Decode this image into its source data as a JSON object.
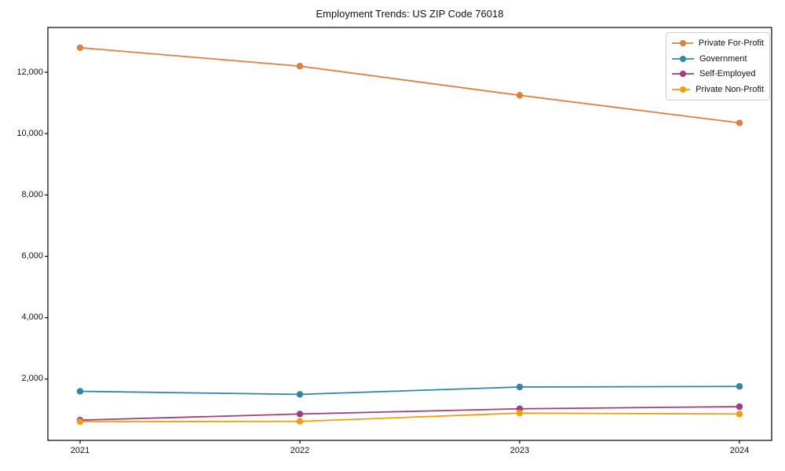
{
  "figure": {
    "title": "Employment Trends: US ZIP Code 76018"
  },
  "chart_data": {
    "type": "line",
    "title": "Employment Trends: US ZIP Code 76018",
    "xlabel": "",
    "ylabel": "",
    "x": [
      2021,
      2022,
      2023,
      2024
    ],
    "x_labels": [
      "2021",
      "2022",
      "2023",
      "2024"
    ],
    "series": [
      {
        "name": "Private For-Profit",
        "color": "#df7f3e",
        "values": [
          12800,
          12200,
          11250,
          10350
        ]
      },
      {
        "name": "Government",
        "color": "#2f87a7",
        "values": [
          1600,
          1500,
          1740,
          1760
        ]
      },
      {
        "name": "Self-Employed",
        "color": "#a53b7c",
        "values": [
          660,
          860,
          1030,
          1100
        ]
      },
      {
        "name": "Private Non-Profit",
        "color": "#f09d10",
        "values": [
          610,
          620,
          890,
          860
        ]
      }
    ],
    "ylim": [
      0,
      13460
    ],
    "yticks": [
      {
        "value": 2000,
        "label": "2,000"
      },
      {
        "value": 4000,
        "label": "4,000"
      },
      {
        "value": 6000,
        "label": "6,000"
      },
      {
        "value": 8000,
        "label": "8,000"
      },
      {
        "value": 10000,
        "label": "10,000"
      },
      {
        "value": 12000,
        "label": "12,000"
      }
    ],
    "grid": false,
    "legend_position": "upper right",
    "marker": "o",
    "axis_color": "#000000"
  }
}
